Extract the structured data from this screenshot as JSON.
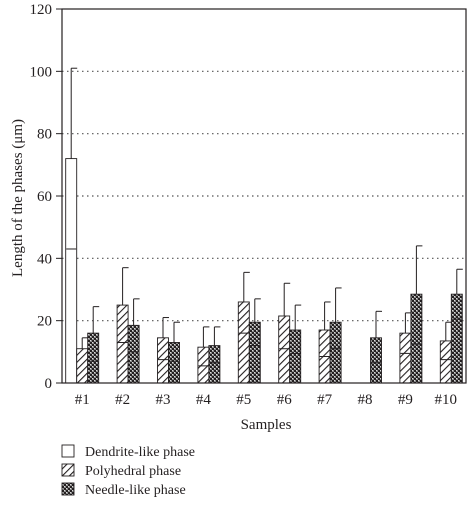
{
  "chart_data": {
    "type": "bar",
    "xlabel": "Samples",
    "ylabel": "Length of the phases (μm)",
    "ylim": [
      0,
      120
    ],
    "yticks": [
      0,
      20,
      40,
      60,
      80,
      100,
      120
    ],
    "grid": "horizontal dotted",
    "legend_position": "bottom-left",
    "categories": [
      "#1",
      "#2",
      "#3",
      "#4",
      "#5",
      "#6",
      "#7",
      "#8",
      "#9",
      "#10"
    ],
    "series": [
      {
        "name": "Dendrite-like phase",
        "pattern": "empty",
        "values": [
          72,
          null,
          null,
          null,
          null,
          null,
          null,
          null,
          null,
          null
        ],
        "error_low": [
          43,
          null,
          null,
          null,
          null,
          null,
          null,
          null,
          null,
          null
        ],
        "error_high": [
          101,
          null,
          null,
          null,
          null,
          null,
          null,
          null,
          null,
          null
        ]
      },
      {
        "name": "Polyhedral phase",
        "pattern": "diagonal-hatch",
        "values": [
          11,
          25,
          14.5,
          11.5,
          26,
          21.5,
          17,
          null,
          16,
          13.5
        ],
        "error_low": [
          null,
          13,
          7.5,
          5.5,
          16,
          11,
          8.5,
          null,
          9.5,
          7.5
        ],
        "error_high": [
          14.5,
          37,
          21,
          18,
          35.5,
          32,
          26,
          null,
          22.5,
          19.5
        ]
      },
      {
        "name": "Needle-like phase",
        "pattern": "crosshatch",
        "values": [
          16,
          18.5,
          13,
          12,
          19.5,
          17,
          19.5,
          14.5,
          28.5,
          28.5
        ],
        "error_low": [
          7,
          10,
          7,
          6.5,
          12,
          9.5,
          11,
          6.5,
          12.5,
          20.5
        ],
        "error_high": [
          24.5,
          27,
          19.5,
          18,
          27,
          25,
          30.5,
          23,
          44,
          36.5
        ]
      }
    ]
  }
}
